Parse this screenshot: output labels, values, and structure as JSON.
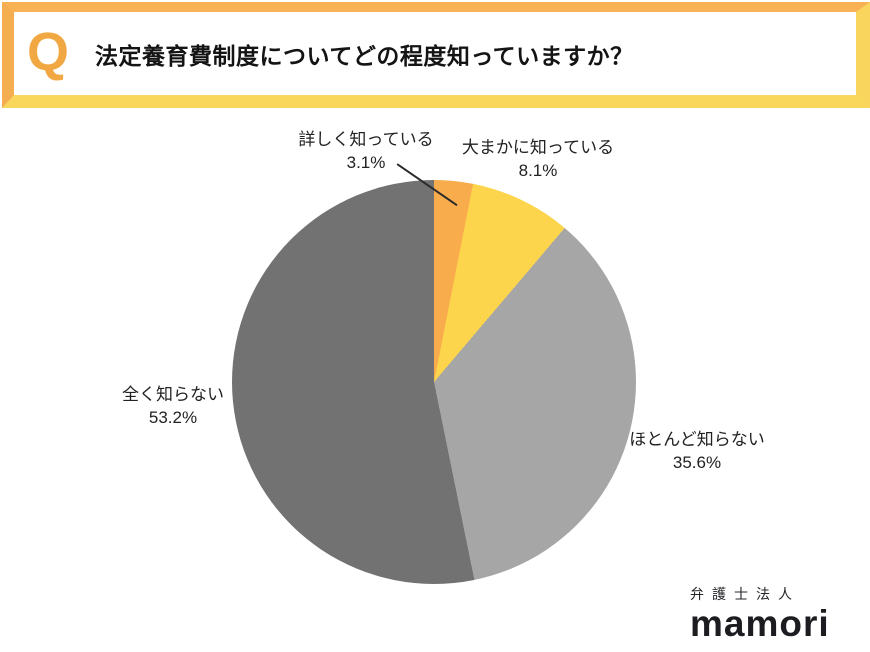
{
  "header": {
    "q_label": "Q",
    "title": "法定養育費制度についてどの程度知っていますか？"
  },
  "chart_data": {
    "type": "pie",
    "title": "法定養育費制度についてどの程度知っていますか？",
    "unit": "%",
    "start_angle_deg": 0,
    "direction": "clockwise",
    "labels_on_chart": true,
    "legend": "none",
    "slices": [
      {
        "label": "詳しく知っている",
        "value": 3.1,
        "display": "3.1%",
        "color": "#F9AC4B"
      },
      {
        "label": "大まかに知っている",
        "value": 8.1,
        "display": "8.1%",
        "color": "#FCD54D"
      },
      {
        "label": "ほとんど知らない",
        "value": 35.6,
        "display": "35.6%",
        "color": "#A6A6A6"
      },
      {
        "label": "全く知らない",
        "value": 53.2,
        "display": "53.2%",
        "color": "#727272"
      }
    ]
  },
  "logo": {
    "firm_type": "弁護士法人",
    "name": "mamori"
  },
  "colors": {
    "frame_orange": "#F5AD52",
    "frame_yellow": "#F9D65C",
    "q_orange": "#F1A843",
    "label_text": "#222222",
    "title_text": "#141414"
  }
}
